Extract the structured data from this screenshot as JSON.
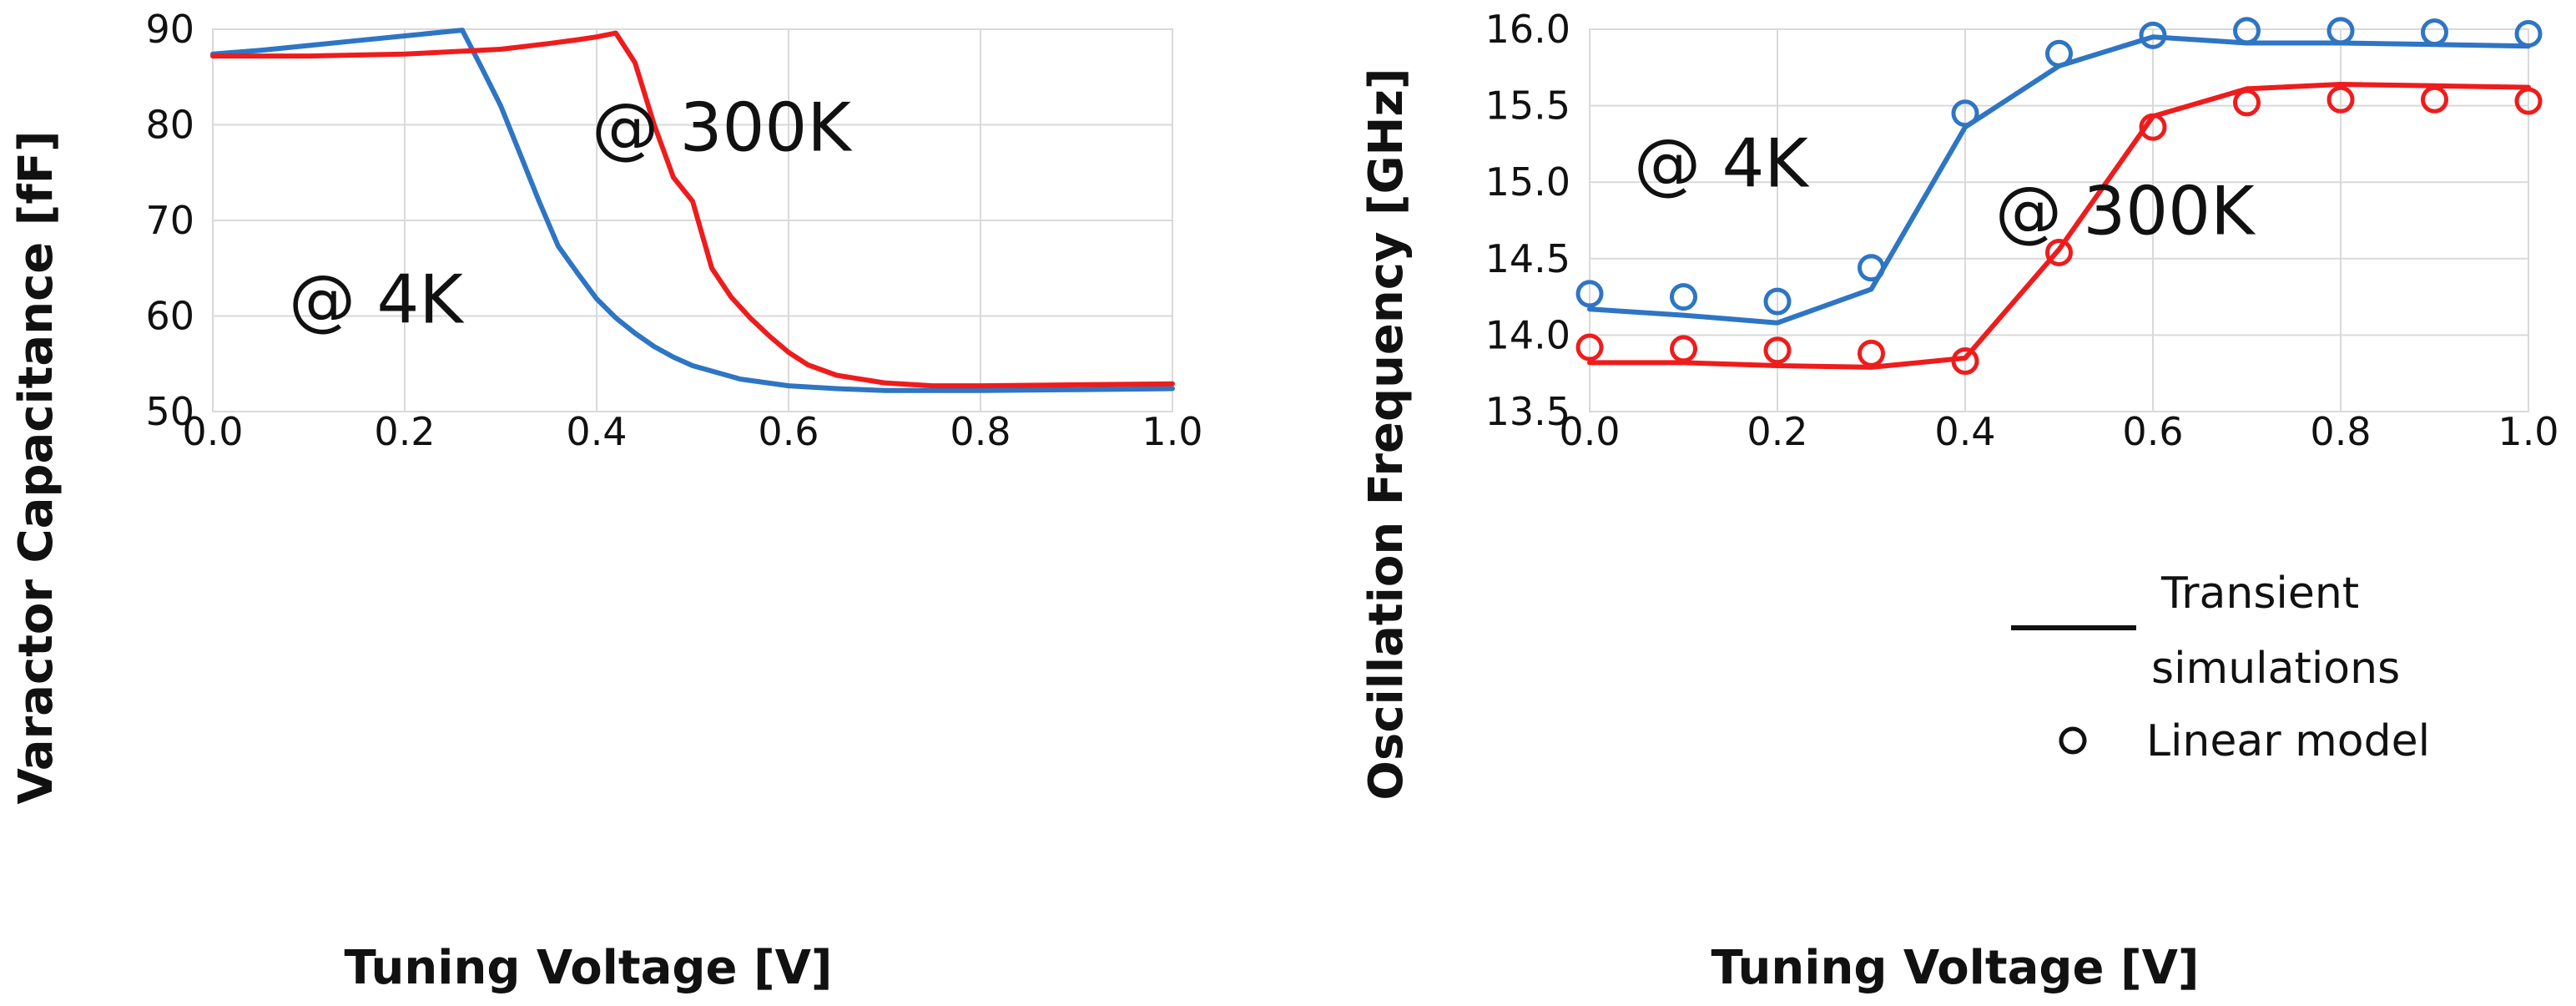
{
  "chart_data": [
    {
      "type": "line",
      "xlabel": "Tuning Voltage [V]",
      "ylabel": "Varactor Capacitance [fF]",
      "xlim": [
        0.0,
        1.0
      ],
      "ylim": [
        50,
        90
      ],
      "xticks": [
        "0.0",
        "0.2",
        "0.4",
        "0.6",
        "0.8",
        "1.0"
      ],
      "yticks": [
        "50",
        "60",
        "70",
        "80",
        "90"
      ],
      "grid": true,
      "annotations": [
        {
          "text": "@ 300K",
          "x": 0.53,
          "y": 77.3
        },
        {
          "text": "@ 4K",
          "x": 0.17,
          "y": 59.3
        }
      ],
      "series": [
        {
          "name": "@ 4K",
          "color": "#2e75c4",
          "x": [
            0.0,
            0.05,
            0.1,
            0.15,
            0.2,
            0.24,
            0.26,
            0.28,
            0.3,
            0.32,
            0.34,
            0.36,
            0.38,
            0.4,
            0.42,
            0.44,
            0.46,
            0.48,
            0.5,
            0.55,
            0.6,
            0.65,
            0.7,
            0.8,
            0.9,
            1.0
          ],
          "y": [
            87.4,
            87.8,
            88.3,
            88.8,
            89.3,
            89.7,
            89.9,
            86.0,
            82.0,
            77.0,
            72.0,
            67.3,
            64.5,
            61.8,
            59.8,
            58.2,
            56.8,
            55.7,
            54.8,
            53.4,
            52.7,
            52.4,
            52.2,
            52.2,
            52.3,
            52.4
          ]
        },
        {
          "name": "@ 300K",
          "color": "#ee1c1c",
          "x": [
            0.0,
            0.1,
            0.2,
            0.3,
            0.35,
            0.38,
            0.4,
            0.42,
            0.44,
            0.46,
            0.48,
            0.5,
            0.52,
            0.54,
            0.56,
            0.58,
            0.6,
            0.62,
            0.65,
            0.7,
            0.75,
            0.8,
            0.9,
            1.0
          ],
          "y": [
            87.2,
            87.2,
            87.4,
            87.9,
            88.5,
            88.9,
            89.2,
            89.6,
            86.5,
            80.0,
            74.5,
            72.0,
            65.0,
            62.0,
            59.8,
            57.9,
            56.2,
            54.9,
            53.8,
            53.0,
            52.7,
            52.7,
            52.8,
            52.9
          ]
        }
      ]
    },
    {
      "type": "line",
      "xlabel": "Tuning Voltage [V]",
      "ylabel": "Oscillation Frequency [GHz]",
      "xlim": [
        0.0,
        1.0
      ],
      "ylim": [
        13.5,
        16.0
      ],
      "xticks": [
        "0.0",
        "0.2",
        "0.4",
        "0.6",
        "0.8",
        "1.0"
      ],
      "yticks": [
        "13.5",
        "14.0",
        "14.5",
        "15.0",
        "15.5",
        "16.0"
      ],
      "grid": true,
      "annotations": [
        {
          "text": "@ 4K",
          "x": 0.14,
          "y": 14.97
        },
        {
          "text": "@ 300K",
          "x": 0.57,
          "y": 14.66
        }
      ],
      "legend": {
        "position": "bottom-right",
        "entries": [
          {
            "marker": "line",
            "lines": [
              "Transient",
              "simulations"
            ]
          },
          {
            "marker": "circle",
            "lines": [
              "Linear model"
            ]
          }
        ]
      },
      "series": [
        {
          "name": "@ 4K transient",
          "style": "line",
          "color": "#2e75c4",
          "x": [
            0.0,
            0.1,
            0.2,
            0.3,
            0.4,
            0.5,
            0.6,
            0.7,
            0.8,
            0.9,
            1.0
          ],
          "y": [
            14.17,
            14.13,
            14.08,
            14.3,
            15.36,
            15.76,
            15.95,
            15.91,
            15.91,
            15.9,
            15.89
          ]
        },
        {
          "name": "@ 4K linear model",
          "style": "marker",
          "color": "#2e75c4",
          "x": [
            0.0,
            0.1,
            0.2,
            0.3,
            0.4,
            0.5,
            0.6,
            0.7,
            0.8,
            0.9,
            1.0
          ],
          "y": [
            14.27,
            14.25,
            14.22,
            14.44,
            15.45,
            15.84,
            15.96,
            15.99,
            15.99,
            15.98,
            15.97
          ]
        },
        {
          "name": "@ 300K transient",
          "style": "line",
          "color": "#ee1c1c",
          "x": [
            0.0,
            0.1,
            0.2,
            0.3,
            0.4,
            0.5,
            0.6,
            0.7,
            0.8,
            0.9,
            1.0
          ],
          "y": [
            13.82,
            13.82,
            13.8,
            13.79,
            13.85,
            14.56,
            15.43,
            15.61,
            15.64,
            15.63,
            15.62
          ]
        },
        {
          "name": "@ 300K linear model",
          "style": "marker",
          "color": "#ee1c1c",
          "x": [
            0.0,
            0.1,
            0.2,
            0.3,
            0.4,
            0.5,
            0.6,
            0.7,
            0.8,
            0.9,
            1.0
          ],
          "y": [
            13.92,
            13.91,
            13.9,
            13.88,
            13.83,
            14.54,
            15.36,
            15.52,
            15.54,
            15.54,
            15.53
          ]
        }
      ]
    }
  ]
}
